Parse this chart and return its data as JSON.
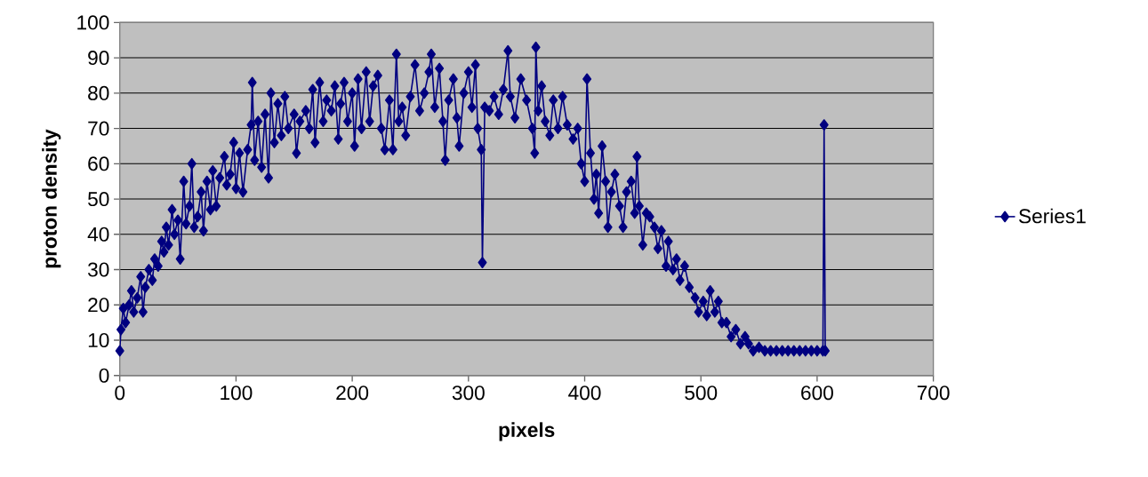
{
  "chart_data": {
    "type": "line",
    "xlabel": "pixels",
    "ylabel": "proton density",
    "xlim": [
      0,
      700
    ],
    "xticks": [
      0,
      100,
      200,
      300,
      400,
      500,
      600,
      700
    ],
    "ylim": [
      0,
      100
    ],
    "yticks": [
      0,
      10,
      20,
      30,
      40,
      50,
      60,
      70,
      80,
      90,
      100
    ],
    "grid": "y",
    "legend": "right",
    "marker": "diamond",
    "line_style": "solid",
    "series": [
      {
        "name": "Series1",
        "color": "#000080",
        "x": [
          0,
          1,
          3,
          5,
          8,
          10,
          12,
          15,
          18,
          20,
          22,
          25,
          28,
          30,
          33,
          36,
          38,
          40,
          42,
          45,
          47,
          50,
          52,
          55,
          57,
          60,
          62,
          64,
          67,
          70,
          72,
          75,
          78,
          80,
          83,
          86,
          90,
          92,
          95,
          98,
          100,
          103,
          106,
          110,
          113,
          114,
          116,
          119,
          122,
          125,
          128,
          130,
          133,
          136,
          139,
          142,
          145,
          150,
          152,
          155,
          160,
          163,
          166,
          168,
          172,
          175,
          178,
          182,
          185,
          188,
          190,
          193,
          196,
          200,
          202,
          205,
          208,
          212,
          215,
          218,
          222,
          225,
          228,
          232,
          235,
          238,
          240,
          243,
          246,
          250,
          254,
          258,
          262,
          266,
          268,
          271,
          275,
          278,
          280,
          283,
          287,
          290,
          292,
          296,
          300,
          303,
          306,
          308,
          311,
          312,
          314,
          318,
          322,
          326,
          330,
          334,
          336,
          340,
          345,
          350,
          355,
          357,
          358,
          360,
          363,
          366,
          370,
          373,
          377,
          381,
          385,
          390,
          394,
          397,
          400,
          402,
          405,
          408,
          410,
          412,
          415,
          418,
          420,
          423,
          426,
          430,
          433,
          436,
          440,
          443,
          445,
          447,
          450,
          453,
          456,
          460,
          463,
          466,
          470,
          472,
          476,
          479,
          482,
          486,
          490,
          495,
          498,
          502,
          505,
          508,
          512,
          515,
          518,
          522,
          526,
          530,
          534,
          538,
          541,
          545,
          550,
          555,
          560,
          565,
          570,
          575,
          580,
          585,
          590,
          595,
          600,
          605,
          606,
          607
        ],
        "values": [
          7,
          13,
          19,
          15,
          20,
          24,
          18,
          22,
          28,
          18,
          25,
          30,
          27,
          33,
          31,
          38,
          35,
          42,
          37,
          47,
          40,
          44,
          33,
          55,
          43,
          48,
          60,
          42,
          45,
          52,
          41,
          55,
          47,
          58,
          48,
          56,
          62,
          54,
          57,
          66,
          53,
          63,
          52,
          64,
          71,
          83,
          61,
          72,
          59,
          74,
          56,
          80,
          66,
          77,
          68,
          79,
          70,
          74,
          63,
          72,
          75,
          70,
          81,
          66,
          83,
          72,
          78,
          75,
          82,
          67,
          77,
          83,
          72,
          80,
          65,
          84,
          70,
          86,
          72,
          82,
          85,
          70,
          64,
          78,
          64,
          91,
          72,
          76,
          68,
          79,
          88,
          75,
          80,
          86,
          91,
          76,
          87,
          72,
          61,
          78,
          84,
          73,
          65,
          80,
          86,
          76,
          88,
          70,
          64,
          32,
          76,
          75,
          79,
          74,
          81,
          92,
          79,
          73,
          84,
          78,
          70,
          63,
          93,
          75,
          82,
          72,
          68,
          78,
          70,
          79,
          71,
          67,
          70,
          60,
          55,
          84,
          63,
          50,
          57,
          46,
          65,
          55,
          42,
          52,
          57,
          48,
          42,
          52,
          55,
          46,
          62,
          48,
          37,
          46,
          45,
          42,
          36,
          41,
          31,
          38,
          30,
          33,
          27,
          31,
          25,
          22,
          18,
          21,
          17,
          24,
          18,
          21,
          15,
          15,
          11,
          13,
          9,
          11,
          9,
          7,
          8,
          7,
          7,
          7,
          7,
          7,
          7,
          7,
          7,
          7,
          7,
          7,
          71,
          7
        ]
      }
    ]
  }
}
